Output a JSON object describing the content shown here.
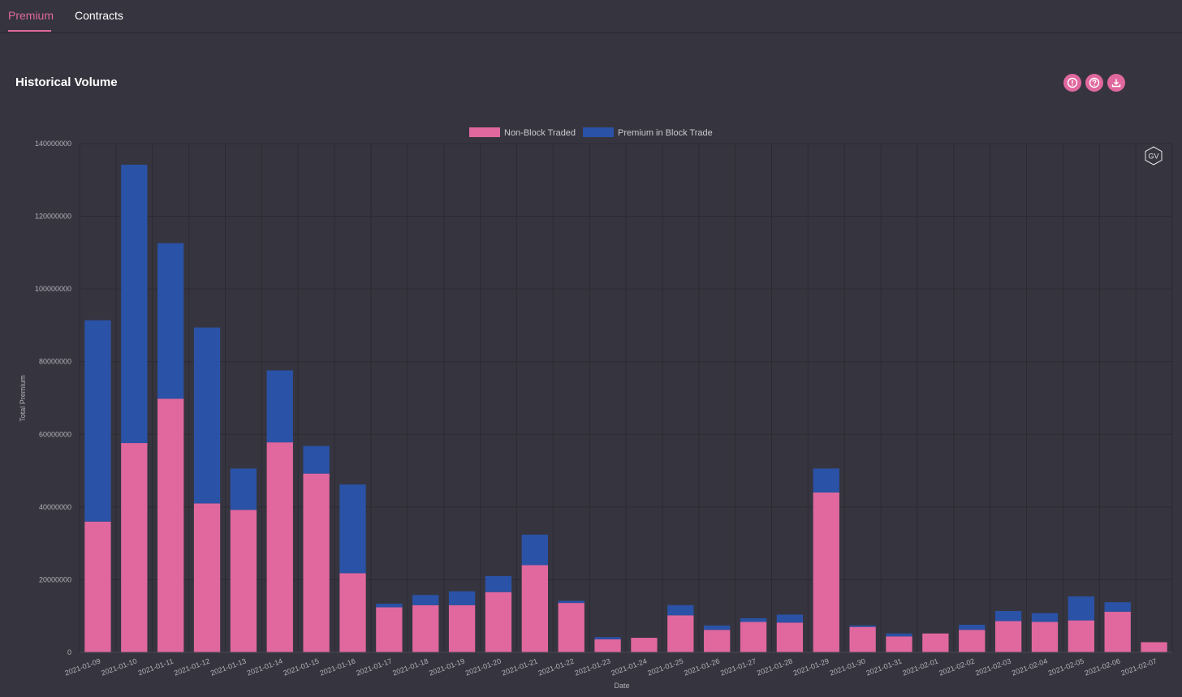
{
  "tabs": [
    {
      "label": "Premium",
      "active": true
    },
    {
      "label": "Contracts",
      "active": false
    }
  ],
  "card": {
    "title": "Historical Volume"
  },
  "toolbar": {
    "icons": [
      "info-icon",
      "help-icon",
      "download-icon"
    ]
  },
  "watermark": "GV",
  "colors": {
    "accent": "#e0689f",
    "non_block": "#e0689f",
    "block": "#2a52a6",
    "background": "#36353f"
  },
  "chart_data": {
    "type": "bar",
    "stacked": true,
    "title": "",
    "xlabel": "Date",
    "ylabel": "Total Premium",
    "ylim": [
      0,
      140000000
    ],
    "yticks": [
      "0",
      "20000000",
      "40000000",
      "60000000",
      "80000000",
      "100000000",
      "120000000",
      "140000000"
    ],
    "grid": true,
    "legend_position": "top-center",
    "categories": [
      "2021-01-09",
      "2021-01-10",
      "2021-01-11",
      "2021-01-12",
      "2021-01-13",
      "2021-01-14",
      "2021-01-15",
      "2021-01-16",
      "2021-01-17",
      "2021-01-18",
      "2021-01-19",
      "2021-01-20",
      "2021-01-21",
      "2021-01-22",
      "2021-01-23",
      "2021-01-24",
      "2021-01-25",
      "2021-01-26",
      "2021-01-27",
      "2021-01-28",
      "2021-01-29",
      "2021-01-30",
      "2021-01-31",
      "2021-02-01",
      "2021-02-02",
      "2021-02-03",
      "2021-02-04",
      "2021-02-05",
      "2021-02-06",
      "2021-02-07"
    ],
    "series": [
      {
        "name": "Non-Block Traded",
        "color": "#e0689f",
        "values": [
          36000000,
          57600000,
          69800000,
          41000000,
          39200000,
          57800000,
          49200000,
          21800000,
          12400000,
          13000000,
          13000000,
          16600000,
          24000000,
          13600000,
          3600000,
          4000000,
          10200000,
          6200000,
          8400000,
          8200000,
          44000000,
          7000000,
          4400000,
          5200000,
          6200000,
          8600000,
          8400000,
          8800000,
          11200000,
          2800000
        ]
      },
      {
        "name": "Premium in Block Trade",
        "color": "#2a52a6",
        "values": [
          55400000,
          76600000,
          42800000,
          48400000,
          11400000,
          19800000,
          7600000,
          24400000,
          1000000,
          2800000,
          3800000,
          4400000,
          8400000,
          600000,
          600000,
          0,
          2800000,
          1200000,
          1000000,
          2200000,
          6600000,
          400000,
          800000,
          0,
          1400000,
          2800000,
          2400000,
          6600000,
          2600000,
          0
        ]
      }
    ]
  }
}
